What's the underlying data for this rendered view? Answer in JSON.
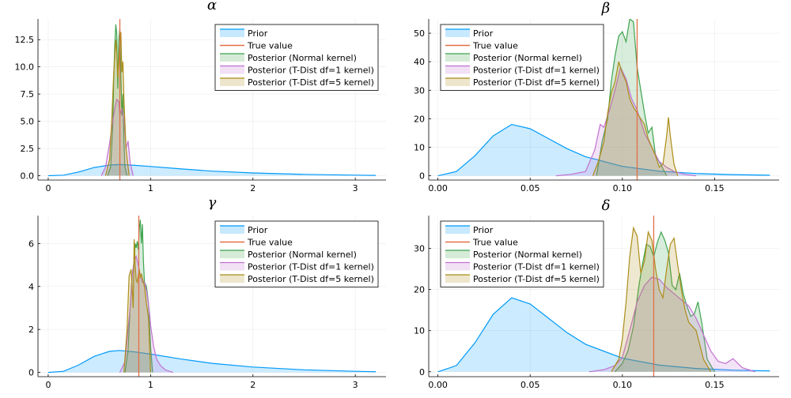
{
  "chart_data": [
    {
      "type": "area",
      "title": "α",
      "xlim": [
        -0.1,
        3.3
      ],
      "ylim": [
        -0.4,
        14.4
      ],
      "xticks": [
        0,
        1,
        2,
        3
      ],
      "xtick_labels": [
        "0",
        "1",
        "2",
        "3"
      ],
      "yticks": [
        0,
        2.5,
        5,
        7.5,
        10,
        12.5
      ],
      "ytick_labels": [
        "0.0",
        "2.5",
        "5.0",
        "7.5",
        "10.0",
        "12.5"
      ],
      "grid": true,
      "legend_position": "top-right",
      "true_value": 0.7,
      "series": [
        {
          "name": "Prior",
          "x": [
            0,
            0.15,
            0.3,
            0.45,
            0.6,
            0.7,
            0.85,
            1.0,
            1.3,
            1.6,
            2.0,
            2.5,
            3.0,
            3.2
          ],
          "y": [
            0,
            0.05,
            0.35,
            0.75,
            0.98,
            1.02,
            0.95,
            0.85,
            0.62,
            0.42,
            0.25,
            0.12,
            0.05,
            0.03
          ]
        },
        {
          "name": "True value"
        },
        {
          "name": "Posterior (Normal kernel)",
          "x": [
            0.58,
            0.61,
            0.63,
            0.64,
            0.65,
            0.66,
            0.67,
            0.68,
            0.69,
            0.7,
            0.71,
            0.72,
            0.73,
            0.74,
            0.75,
            0.77
          ],
          "y": [
            0,
            0.8,
            4.5,
            9,
            12,
            13.9,
            13,
            8,
            12.5,
            13.5,
            9.5,
            5.5,
            7.5,
            3,
            0.8,
            0
          ]
        },
        {
          "name": "Posterior (T-Dist df=1 kernel)",
          "x": [
            0.52,
            0.56,
            0.6,
            0.63,
            0.65,
            0.67,
            0.69,
            0.7,
            0.72,
            0.74,
            0.76,
            0.78,
            0.8,
            0.83
          ],
          "y": [
            0,
            0.8,
            3,
            5,
            6.2,
            7,
            6.8,
            5.6,
            6.2,
            5.2,
            2.5,
            3.2,
            1.2,
            0
          ]
        },
        {
          "name": "Posterior (T-Dist df=5 kernel)",
          "x": [
            0.56,
            0.6,
            0.62,
            0.64,
            0.66,
            0.67,
            0.68,
            0.7,
            0.71,
            0.72,
            0.73,
            0.74,
            0.76,
            0.79
          ],
          "y": [
            0,
            1.5,
            5,
            9.5,
            12.5,
            11.3,
            9,
            12,
            13.2,
            9.5,
            10.5,
            7,
            2.5,
            0
          ]
        }
      ]
    },
    {
      "type": "area",
      "title": "β",
      "xlim": [
        -0.005,
        0.185
      ],
      "ylim": [
        -1.5,
        55
      ],
      "xticks": [
        0,
        0.05,
        0.1,
        0.15
      ],
      "xtick_labels": [
        "0.00",
        "0.05",
        "0.10",
        "0.15"
      ],
      "yticks": [
        0,
        10,
        20,
        30,
        40,
        50
      ],
      "ytick_labels": [
        "0",
        "10",
        "20",
        "30",
        "40",
        "50"
      ],
      "grid": true,
      "legend_position": "top-left",
      "true_value": 0.108,
      "series": [
        {
          "name": "Prior",
          "x": [
            0,
            0.01,
            0.02,
            0.03,
            0.04,
            0.05,
            0.06,
            0.07,
            0.08,
            0.1,
            0.12,
            0.14,
            0.16,
            0.18
          ],
          "y": [
            0,
            1.5,
            7,
            14,
            18,
            16.5,
            13,
            9.5,
            6.7,
            3.3,
            1.6,
            0.8,
            0.4,
            0.2
          ]
        },
        {
          "name": "True value"
        },
        {
          "name": "Posterior (Normal kernel)",
          "x": [
            0.086,
            0.089,
            0.092,
            0.094,
            0.096,
            0.098,
            0.1,
            0.102,
            0.104,
            0.106,
            0.108,
            0.11,
            0.112,
            0.114,
            0.116,
            0.118,
            0.12,
            0.124
          ],
          "y": [
            0,
            12,
            20,
            33,
            42,
            49,
            50.5,
            47,
            55,
            54,
            38,
            30,
            22,
            15,
            17,
            7,
            5,
            0
          ]
        },
        {
          "name": "Posterior (T-Dist df=1 kernel)",
          "x": [
            0.064,
            0.072,
            0.08,
            0.085,
            0.088,
            0.09,
            0.093,
            0.096,
            0.099,
            0.102,
            0.105,
            0.108,
            0.112,
            0.116,
            0.12,
            0.124,
            0.128,
            0.134,
            0.14
          ],
          "y": [
            0,
            0.5,
            1.5,
            9,
            18,
            17,
            23,
            30,
            38,
            34,
            27,
            23,
            15,
            10,
            5,
            3,
            1.5,
            0.5,
            0
          ]
        },
        {
          "name": "Posterior (T-Dist df=5 kernel)",
          "x": [
            0.084,
            0.087,
            0.09,
            0.092,
            0.094,
            0.096,
            0.098,
            0.1,
            0.102,
            0.104,
            0.106,
            0.108,
            0.11,
            0.112,
            0.114,
            0.116,
            0.118,
            0.12,
            0.122,
            0.124,
            0.125,
            0.126,
            0.128,
            0.13
          ],
          "y": [
            0,
            5,
            12,
            22,
            29,
            33,
            40,
            36,
            33,
            27,
            24,
            22,
            20,
            18,
            13,
            10,
            7,
            3,
            4,
            14,
            20.5,
            14,
            4,
            0
          ]
        }
      ]
    },
    {
      "type": "area",
      "title": "γ",
      "xlim": [
        -0.1,
        3.3
      ],
      "ylim": [
        -0.2,
        7.3
      ],
      "xticks": [
        0,
        1,
        2,
        3
      ],
      "xtick_labels": [
        "0",
        "1",
        "2",
        "3"
      ],
      "yticks": [
        0,
        2,
        4,
        6
      ],
      "ytick_labels": [
        "0",
        "2",
        "4",
        "6"
      ],
      "grid": true,
      "legend_position": "top-right",
      "true_value": 0.885,
      "series": [
        {
          "name": "Prior",
          "x": [
            0,
            0.15,
            0.3,
            0.45,
            0.6,
            0.7,
            0.85,
            1.0,
            1.3,
            1.6,
            2.0,
            2.5,
            3.0,
            3.2
          ],
          "y": [
            0,
            0.05,
            0.35,
            0.75,
            0.98,
            1.02,
            0.95,
            0.85,
            0.62,
            0.42,
            0.25,
            0.12,
            0.05,
            0.03
          ]
        },
        {
          "name": "True value"
        },
        {
          "name": "Posterior (Normal kernel)",
          "x": [
            0.75,
            0.78,
            0.8,
            0.82,
            0.84,
            0.85,
            0.86,
            0.87,
            0.88,
            0.89,
            0.9,
            0.91,
            0.92,
            0.93,
            0.94,
            0.96,
            0.98,
            1.0,
            1.02
          ],
          "y": [
            0,
            1,
            3,
            4.5,
            5.2,
            6,
            5.8,
            6.1,
            5.7,
            6.7,
            7.1,
            6,
            6.9,
            5.2,
            4.2,
            4,
            3.2,
            1.2,
            0
          ]
        },
        {
          "name": "Posterior (T-Dist df=1 kernel)",
          "x": [
            0.7,
            0.75,
            0.78,
            0.8,
            0.82,
            0.84,
            0.86,
            0.88,
            0.9,
            0.92,
            0.94,
            0.96,
            0.98,
            1.0,
            1.03,
            1.06,
            1.1,
            1.15,
            1.22
          ],
          "y": [
            0,
            0.5,
            2,
            3,
            4.5,
            5.2,
            5.4,
            5,
            4.5,
            4.2,
            4.2,
            3.8,
            3.2,
            2.2,
            1.2,
            0.6,
            0.3,
            0.1,
            0
          ]
        },
        {
          "name": "Posterior (T-Dist df=5 kernel)",
          "x": [
            0.74,
            0.77,
            0.79,
            0.81,
            0.83,
            0.84,
            0.85,
            0.86,
            0.87,
            0.88,
            0.89,
            0.9,
            0.91,
            0.92,
            0.94,
            0.96,
            0.98,
            1.0
          ],
          "y": [
            0,
            2,
            4.5,
            4.8,
            3,
            6.2,
            5,
            4.3,
            4.2,
            4.5,
            4.8,
            4.4,
            4.6,
            4.4,
            4,
            3.2,
            2.5,
            0
          ]
        }
      ]
    },
    {
      "type": "area",
      "title": "δ",
      "xlim": [
        -0.005,
        0.185
      ],
      "ylim": [
        -1.2,
        38
      ],
      "xticks": [
        0,
        0.05,
        0.1,
        0.15
      ],
      "xtick_labels": [
        "0.00",
        "0.05",
        "0.10",
        "0.15"
      ],
      "yticks": [
        0,
        10,
        20,
        30
      ],
      "ytick_labels": [
        "0",
        "10",
        "20",
        "30"
      ],
      "grid": true,
      "legend_position": "top-left",
      "true_value": 0.117,
      "series": [
        {
          "name": "Prior",
          "x": [
            0,
            0.01,
            0.02,
            0.03,
            0.04,
            0.05,
            0.06,
            0.07,
            0.08,
            0.1,
            0.12,
            0.14,
            0.16,
            0.18
          ],
          "y": [
            0,
            1.5,
            7,
            14,
            18,
            16.5,
            13,
            9.5,
            6.7,
            3.3,
            1.6,
            0.8,
            0.4,
            0.2
          ]
        },
        {
          "name": "True value"
        },
        {
          "name": "Posterior (Normal kernel)",
          "x": [
            0.096,
            0.1,
            0.103,
            0.106,
            0.109,
            0.111,
            0.113,
            0.115,
            0.117,
            0.119,
            0.121,
            0.123,
            0.125,
            0.127,
            0.129,
            0.131,
            0.133,
            0.135,
            0.137,
            0.139,
            0.141,
            0.143,
            0.146,
            0.15
          ],
          "y": [
            0,
            2,
            5,
            11,
            21,
            26.5,
            31,
            30.5,
            28,
            31.5,
            34,
            32,
            29,
            21,
            20,
            24,
            19,
            16,
            13.5,
            14,
            17,
            12,
            3,
            0
          ]
        },
        {
          "name": "Posterior (T-Dist df=1 kernel)",
          "x": [
            0.082,
            0.09,
            0.096,
            0.1,
            0.104,
            0.108,
            0.112,
            0.116,
            0.12,
            0.124,
            0.128,
            0.132,
            0.136,
            0.14,
            0.144,
            0.148,
            0.152,
            0.156,
            0.16,
            0.165,
            0.172
          ],
          "y": [
            0,
            0.5,
            1.5,
            3.5,
            10,
            17,
            21,
            23,
            22.5,
            20.5,
            19,
            17.5,
            16,
            13,
            9,
            5,
            2.5,
            2,
            3.2,
            1,
            0
          ]
        },
        {
          "name": "Posterior (T-Dist df=5 kernel)",
          "x": [
            0.094,
            0.098,
            0.1,
            0.102,
            0.104,
            0.106,
            0.108,
            0.11,
            0.112,
            0.114,
            0.116,
            0.118,
            0.12,
            0.122,
            0.124,
            0.126,
            0.128,
            0.13,
            0.132,
            0.134,
            0.136,
            0.14,
            0.144,
            0.148
          ],
          "y": [
            0,
            3,
            8,
            17,
            28,
            35,
            33,
            24,
            27,
            34,
            32,
            25,
            20,
            18,
            25,
            31,
            32.5,
            26,
            20,
            15,
            12,
            10,
            3,
            0
          ]
        }
      ]
    }
  ],
  "legend_items": [
    "Prior",
    "True value",
    "Posterior (Normal kernel)",
    "Posterior (T-Dist df=1 kernel)",
    "Posterior (T-Dist df=5 kernel)"
  ],
  "colors": {
    "Prior": "#009AFA",
    "True value": "#E36F47",
    "Posterior (Normal kernel)": "#3EA44E",
    "Posterior (T-Dist df=1 kernel)": "#C271D2",
    "Posterior (T-Dist df=5 kernel)": "#AC8D18"
  }
}
